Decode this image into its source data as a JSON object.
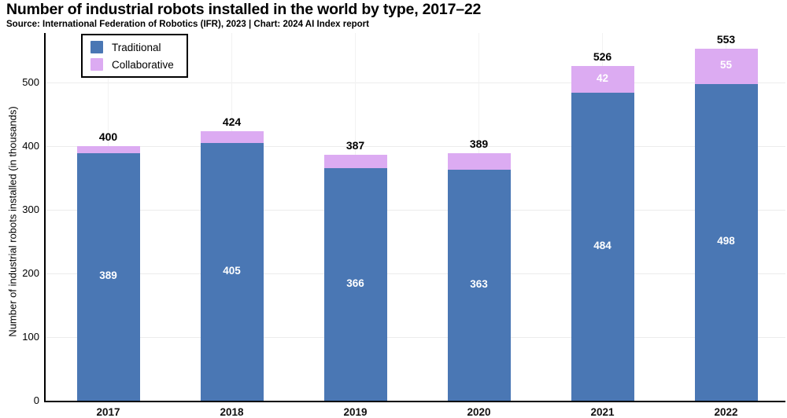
{
  "header": {
    "title": "Number of industrial robots installed in the world by type, 2017–22",
    "source": "Source: International Federation of Robotics (IFR), 2023 | Chart: 2024 AI Index report"
  },
  "colors": {
    "traditional": "#4a77b4",
    "collaborative": "#dcabf2",
    "grid": "#ececec",
    "axis": "#000000",
    "inside_label": "#ffffff",
    "total_label": "#000000"
  },
  "legend": {
    "items": [
      {
        "label": "Traditional",
        "color_key": "traditional"
      },
      {
        "label": "Collaborative",
        "color_key": "collaborative"
      }
    ]
  },
  "chart_data": {
    "type": "bar",
    "stacked": true,
    "title": "Number of industrial robots installed in the world by type, 2017–22",
    "source": "Source: International Federation of Robotics (IFR), 2023 | Chart: 2024 AI Index report",
    "categories": [
      "2017",
      "2018",
      "2019",
      "2020",
      "2021",
      "2022"
    ],
    "series": [
      {
        "name": "Traditional",
        "values": [
          389,
          405,
          366,
          363,
          484,
          498
        ]
      },
      {
        "name": "Collaborative",
        "values": [
          11,
          19,
          21,
          26,
          42,
          55
        ]
      }
    ],
    "totals": [
      400,
      424,
      387,
      389,
      526,
      553
    ],
    "visible_segment_labels": {
      "traditional": [
        389,
        405,
        366,
        363,
        484,
        498
      ],
      "collaborative": [
        null,
        null,
        null,
        null,
        42,
        55
      ]
    },
    "xlabel": "",
    "ylabel": "Number of industrial robots installed (in thousands)",
    "ylim": [
      0,
      560
    ],
    "yticks": [
      0,
      100,
      200,
      300,
      400,
      500
    ],
    "grid": true,
    "legend_position": "top-left"
  }
}
